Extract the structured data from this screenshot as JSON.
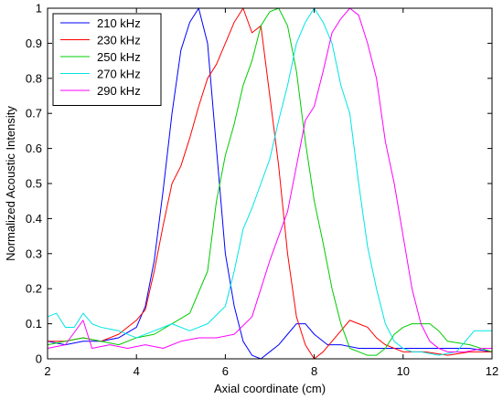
{
  "chart_data": {
    "type": "line",
    "title": "",
    "xlabel": "Axial coordinate (cm)",
    "ylabel": "Normalized Acoustic Intensity",
    "xlim": [
      2,
      12
    ],
    "ylim": [
      0,
      1
    ],
    "x_ticks": [
      2,
      4,
      6,
      8,
      10,
      12
    ],
    "y_ticks": [
      0,
      0.1,
      0.2,
      0.3,
      0.4,
      0.5,
      0.6,
      0.7,
      0.8,
      0.9,
      1
    ],
    "x_tick_labels": [
      "2",
      "4",
      "6",
      "8",
      "10",
      "12"
    ],
    "y_tick_labels": [
      "0",
      "0.1",
      "0.2",
      "0.3",
      "0.4",
      "0.5",
      "0.6",
      "0.7",
      "0.8",
      "0.9",
      "1"
    ],
    "grid": false,
    "legend_position": "top-left",
    "series": [
      {
        "name": "210 kHz",
        "color": "#0000ff",
        "points": [
          [
            2.0,
            0.05
          ],
          [
            2.4,
            0.04
          ],
          [
            2.8,
            0.05
          ],
          [
            3.2,
            0.05
          ],
          [
            3.6,
            0.06
          ],
          [
            4.0,
            0.09
          ],
          [
            4.2,
            0.15
          ],
          [
            4.4,
            0.28
          ],
          [
            4.6,
            0.48
          ],
          [
            4.8,
            0.7
          ],
          [
            5.0,
            0.88
          ],
          [
            5.2,
            0.96
          ],
          [
            5.4,
            1.0
          ],
          [
            5.6,
            0.9
          ],
          [
            5.8,
            0.6
          ],
          [
            6.0,
            0.3
          ],
          [
            6.2,
            0.15
          ],
          [
            6.4,
            0.05
          ],
          [
            6.6,
            0.01
          ],
          [
            6.8,
            0.0
          ],
          [
            7.0,
            0.02
          ],
          [
            7.2,
            0.04
          ],
          [
            7.4,
            0.07
          ],
          [
            7.6,
            0.1
          ],
          [
            7.8,
            0.1
          ],
          [
            8.0,
            0.07
          ],
          [
            8.3,
            0.04
          ],
          [
            8.6,
            0.04
          ],
          [
            9.0,
            0.03
          ],
          [
            9.5,
            0.03
          ],
          [
            10.0,
            0.03
          ],
          [
            10.5,
            0.03
          ],
          [
            11.0,
            0.03
          ],
          [
            11.5,
            0.03
          ],
          [
            12.0,
            0.02
          ]
        ]
      },
      {
        "name": "230 kHz",
        "color": "#ff0000",
        "points": [
          [
            2.0,
            0.05
          ],
          [
            2.4,
            0.05
          ],
          [
            2.8,
            0.06
          ],
          [
            3.2,
            0.05
          ],
          [
            3.6,
            0.07
          ],
          [
            4.0,
            0.11
          ],
          [
            4.2,
            0.14
          ],
          [
            4.4,
            0.25
          ],
          [
            4.6,
            0.38
          ],
          [
            4.8,
            0.5
          ],
          [
            5.0,
            0.55
          ],
          [
            5.2,
            0.63
          ],
          [
            5.4,
            0.72
          ],
          [
            5.6,
            0.8
          ],
          [
            5.8,
            0.84
          ],
          [
            6.0,
            0.9
          ],
          [
            6.2,
            0.96
          ],
          [
            6.4,
            1.0
          ],
          [
            6.6,
            0.93
          ],
          [
            6.8,
            0.95
          ],
          [
            7.0,
            0.75
          ],
          [
            7.2,
            0.55
          ],
          [
            7.4,
            0.3
          ],
          [
            7.6,
            0.12
          ],
          [
            7.8,
            0.04
          ],
          [
            8.0,
            0.0
          ],
          [
            8.2,
            0.02
          ],
          [
            8.4,
            0.05
          ],
          [
            8.6,
            0.08
          ],
          [
            8.8,
            0.11
          ],
          [
            9.0,
            0.1
          ],
          [
            9.2,
            0.09
          ],
          [
            9.4,
            0.06
          ],
          [
            9.6,
            0.04
          ],
          [
            10.0,
            0.02
          ],
          [
            10.5,
            0.02
          ],
          [
            11.0,
            0.01
          ],
          [
            11.5,
            0.02
          ],
          [
            12.0,
            0.02
          ]
        ]
      },
      {
        "name": "250 kHz",
        "color": "#00cc00",
        "points": [
          [
            2.0,
            0.04
          ],
          [
            2.4,
            0.05
          ],
          [
            2.8,
            0.06
          ],
          [
            3.2,
            0.05
          ],
          [
            3.6,
            0.04
          ],
          [
            4.0,
            0.06
          ],
          [
            4.4,
            0.07
          ],
          [
            4.8,
            0.1
          ],
          [
            5.2,
            0.13
          ],
          [
            5.6,
            0.25
          ],
          [
            5.8,
            0.45
          ],
          [
            6.0,
            0.58
          ],
          [
            6.2,
            0.67
          ],
          [
            6.4,
            0.78
          ],
          [
            6.6,
            0.85
          ],
          [
            6.8,
            0.95
          ],
          [
            7.0,
            0.99
          ],
          [
            7.2,
            1.0
          ],
          [
            7.4,
            0.95
          ],
          [
            7.6,
            0.82
          ],
          [
            7.8,
            0.62
          ],
          [
            8.0,
            0.45
          ],
          [
            8.2,
            0.33
          ],
          [
            8.4,
            0.2
          ],
          [
            8.6,
            0.1
          ],
          [
            8.8,
            0.03
          ],
          [
            9.0,
            0.02
          ],
          [
            9.2,
            0.01
          ],
          [
            9.4,
            0.01
          ],
          [
            9.6,
            0.03
          ],
          [
            9.8,
            0.07
          ],
          [
            10.0,
            0.09
          ],
          [
            10.2,
            0.1
          ],
          [
            10.4,
            0.1
          ],
          [
            10.6,
            0.1
          ],
          [
            10.8,
            0.08
          ],
          [
            11.0,
            0.05
          ],
          [
            11.5,
            0.04
          ],
          [
            12.0,
            0.02
          ]
        ]
      },
      {
        "name": "270 kHz",
        "color": "#00e5e5",
        "points": [
          [
            2.0,
            0.12
          ],
          [
            2.2,
            0.13
          ],
          [
            2.4,
            0.09
          ],
          [
            2.6,
            0.09
          ],
          [
            2.8,
            0.13
          ],
          [
            3.0,
            0.1
          ],
          [
            3.2,
            0.09
          ],
          [
            3.6,
            0.08
          ],
          [
            4.0,
            0.06
          ],
          [
            4.4,
            0.08
          ],
          [
            4.8,
            0.1
          ],
          [
            5.2,
            0.08
          ],
          [
            5.6,
            0.1
          ],
          [
            6.0,
            0.15
          ],
          [
            6.2,
            0.25
          ],
          [
            6.4,
            0.37
          ],
          [
            6.6,
            0.43
          ],
          [
            6.8,
            0.5
          ],
          [
            7.0,
            0.57
          ],
          [
            7.2,
            0.68
          ],
          [
            7.4,
            0.78
          ],
          [
            7.6,
            0.9
          ],
          [
            7.8,
            0.96
          ],
          [
            8.0,
            1.0
          ],
          [
            8.2,
            0.96
          ],
          [
            8.4,
            0.9
          ],
          [
            8.6,
            0.78
          ],
          [
            8.8,
            0.7
          ],
          [
            9.0,
            0.5
          ],
          [
            9.2,
            0.32
          ],
          [
            9.4,
            0.2
          ],
          [
            9.6,
            0.1
          ],
          [
            9.8,
            0.05
          ],
          [
            10.0,
            0.03
          ],
          [
            10.2,
            0.02
          ],
          [
            10.4,
            0.02
          ],
          [
            10.8,
            0.01
          ],
          [
            11.2,
            0.02
          ],
          [
            11.6,
            0.08
          ],
          [
            12.0,
            0.08
          ]
        ]
      },
      {
        "name": "290 kHz",
        "color": "#ff00ff",
        "points": [
          [
            2.0,
            0.03
          ],
          [
            2.4,
            0.04
          ],
          [
            2.8,
            0.11
          ],
          [
            3.0,
            0.03
          ],
          [
            3.4,
            0.04
          ],
          [
            3.8,
            0.03
          ],
          [
            4.2,
            0.04
          ],
          [
            4.6,
            0.03
          ],
          [
            5.0,
            0.05
          ],
          [
            5.4,
            0.06
          ],
          [
            5.8,
            0.06
          ],
          [
            6.2,
            0.07
          ],
          [
            6.6,
            0.12
          ],
          [
            6.8,
            0.2
          ],
          [
            7.0,
            0.28
          ],
          [
            7.2,
            0.35
          ],
          [
            7.4,
            0.42
          ],
          [
            7.6,
            0.55
          ],
          [
            7.8,
            0.68
          ],
          [
            8.0,
            0.72
          ],
          [
            8.2,
            0.82
          ],
          [
            8.4,
            0.93
          ],
          [
            8.6,
            0.97
          ],
          [
            8.8,
            1.0
          ],
          [
            9.0,
            0.98
          ],
          [
            9.2,
            0.9
          ],
          [
            9.4,
            0.8
          ],
          [
            9.6,
            0.62
          ],
          [
            9.8,
            0.5
          ],
          [
            10.0,
            0.35
          ],
          [
            10.2,
            0.2
          ],
          [
            10.4,
            0.1
          ],
          [
            10.6,
            0.05
          ],
          [
            10.8,
            0.03
          ],
          [
            11.0,
            0.02
          ],
          [
            11.4,
            0.02
          ],
          [
            11.8,
            0.03
          ],
          [
            12.0,
            0.03
          ]
        ]
      }
    ]
  }
}
